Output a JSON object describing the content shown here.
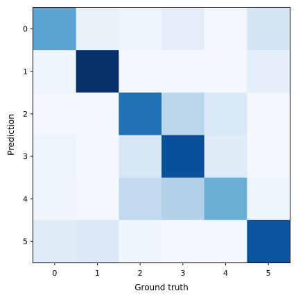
{
  "chart_data": {
    "type": "heatmap",
    "colormap": "Blues",
    "xlabel": "Ground truth",
    "ylabel": "Prediction",
    "x_categories": [
      "0",
      "1",
      "2",
      "3",
      "4",
      "5"
    ],
    "y_categories": [
      "0",
      "1",
      "2",
      "3",
      "4",
      "5"
    ],
    "values": [
      [
        0.55,
        0.08,
        0.05,
        0.1,
        0.03,
        0.17
      ],
      [
        0.04,
        1.0,
        0.02,
        0.02,
        0.02,
        0.09
      ],
      [
        0.03,
        0.02,
        0.75,
        0.28,
        0.15,
        0.03
      ],
      [
        0.05,
        0.02,
        0.16,
        0.88,
        0.12,
        0.03
      ],
      [
        0.04,
        0.02,
        0.26,
        0.32,
        0.5,
        0.04
      ],
      [
        0.12,
        0.14,
        0.04,
        0.02,
        0.02,
        0.86
      ]
    ],
    "value_range": [
      0,
      1
    ],
    "grid": false
  }
}
